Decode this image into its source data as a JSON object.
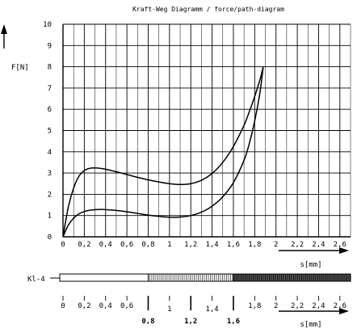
{
  "chart_data": {
    "type": "line",
    "title": "Kraft-Weg Diagramm / force/path-diagram",
    "ylabel": "F[N]",
    "xlabel": "s[mm]",
    "xlim": [
      0,
      2.7
    ],
    "ylim": [
      0,
      10
    ],
    "grid": true,
    "x_ticks": [
      "0",
      "0,2",
      "0,4",
      "0,6",
      "0,8",
      "1",
      "1,2",
      "1,4",
      "1,6",
      "1,8",
      "2",
      "2,2",
      "2,4",
      "2,6"
    ],
    "y_ticks": [
      "0",
      "1",
      "2",
      "3",
      "4",
      "5",
      "6",
      "7",
      "8",
      "9",
      "10"
    ],
    "series": [
      {
        "x": [
          0,
          0.05,
          0.1,
          0.15,
          0.2,
          0.25,
          0.3,
          0.35,
          0.4,
          0.5,
          0.6,
          0.7,
          0.8,
          0.9,
          1.0,
          1.1,
          1.2,
          1.3,
          1.4,
          1.5,
          1.6,
          1.7,
          1.75,
          1.8,
          1.85,
          1.88
        ],
        "values": [
          0,
          1.4,
          2.3,
          2.85,
          3.12,
          3.22,
          3.24,
          3.22,
          3.18,
          3.06,
          2.93,
          2.8,
          2.68,
          2.58,
          2.5,
          2.46,
          2.5,
          2.66,
          2.98,
          3.5,
          4.25,
          5.25,
          5.9,
          6.6,
          7.4,
          8.0
        ]
      },
      {
        "x": [
          0,
          0.05,
          0.1,
          0.15,
          0.2,
          0.25,
          0.3,
          0.35,
          0.4,
          0.5,
          0.6,
          0.7,
          0.8,
          0.9,
          1.0,
          1.1,
          1.2,
          1.3,
          1.4,
          1.5,
          1.6,
          1.7,
          1.75,
          1.8,
          1.85,
          1.88
        ],
        "values": [
          0,
          0.55,
          0.88,
          1.08,
          1.19,
          1.25,
          1.28,
          1.29,
          1.28,
          1.24,
          1.18,
          1.1,
          1.02,
          0.96,
          0.92,
          0.93,
          1.0,
          1.16,
          1.44,
          1.88,
          2.55,
          3.6,
          4.4,
          5.45,
          6.8,
          8.0
        ]
      }
    ],
    "scale": {
      "marker": "Kl-4",
      "segment_boundaries": [
        0.8,
        1.6
      ],
      "ticks": [
        "0",
        "0,2",
        "0,4",
        "0,6",
        "0,8",
        "1",
        "1,2",
        "1,4",
        "1,6",
        "1,8",
        "2",
        "2,2",
        "2,4",
        "2,6"
      ],
      "xlabel": "s[mm]"
    }
  }
}
